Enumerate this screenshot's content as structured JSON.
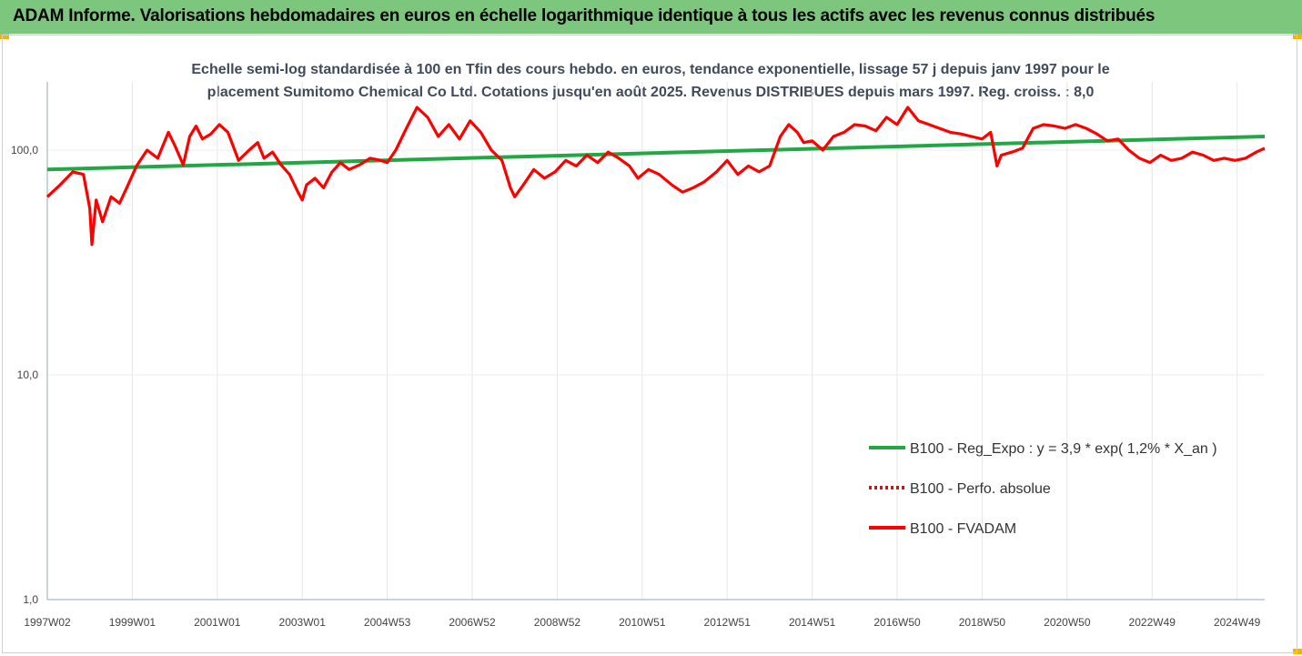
{
  "header": {
    "title": "ADAM Informe. Valorisations hebdomadaires en euros en échelle logarithmique identique à tous les actifs avec les revenus connus distribués"
  },
  "chart_data": {
    "type": "line",
    "title_line1": "Echelle semi-log standardisée à 100 en Tfin des cours hebdo. en euros, tendance exponentielle, lissage 57 j depuis janv 1997 pour le",
    "title_line2": "placement Sumitomo Chemical Co Ltd. Cotations jusqu'en août 2025. Revenus DISTRIBUES depuis mars 1997. Reg. croiss. : 8,0",
    "y_scale": "log",
    "ylim": [
      1,
      200
    ],
    "y_ticks": [
      1,
      10,
      100
    ],
    "y_tick_labels": [
      "1,0",
      "10,0",
      "100,0"
    ],
    "xlim": [
      1997.0,
      2025.65
    ],
    "x_ticks": [
      1997.0,
      1999.0,
      2001.0,
      2003.0,
      2005.0,
      2007.0,
      2009.0,
      2011.0,
      2013.0,
      2015.0,
      2017.0,
      2019.0,
      2021.0,
      2023.0,
      2025.0
    ],
    "x_tick_labels": [
      "1997W02",
      "1999W01",
      "2001W01",
      "2003W01",
      "2004W53",
      "2006W52",
      "2008W52",
      "2010W51",
      "2012W51",
      "2014W51",
      "2016W50",
      "2018W50",
      "2020W50",
      "2022W49",
      "2024W49"
    ],
    "grid": "vertical",
    "legend_position": "bottom-right",
    "colors": {
      "regression": "#22a745",
      "perfo": "#ff0000",
      "fvadam": "#ff0000"
    },
    "series": [
      {
        "name": "B100 - Reg_Expo : y = 3,9 * exp( 1,2% *  X_an )",
        "style": "solid-green",
        "x": [
          1997.0,
          2025.65
        ],
        "values": [
          82,
          115
        ]
      },
      {
        "name": "B100 - Perfo. absolue",
        "style": "dotted-red",
        "x": [],
        "values": []
      },
      {
        "name": "B100 - FVADAM",
        "style": "solid-red",
        "x": [
          1997.0,
          1997.3,
          1997.6,
          1997.85,
          1998.0,
          1998.05,
          1998.15,
          1998.3,
          1998.5,
          1998.7,
          1998.9,
          1999.1,
          1999.35,
          1999.6,
          1999.85,
          2000.0,
          2000.2,
          2000.35,
          2000.5,
          2000.65,
          2000.85,
          2001.05,
          2001.25,
          2001.5,
          2001.75,
          2001.95,
          2002.1,
          2002.3,
          2002.5,
          2002.7,
          2002.9,
          2003.0,
          2003.1,
          2003.3,
          2003.5,
          2003.7,
          2003.9,
          2004.1,
          2004.35,
          2004.6,
          2004.85,
          2005.0,
          2005.2,
          2005.45,
          2005.7,
          2005.95,
          2006.2,
          2006.45,
          2006.7,
          2006.95,
          2007.2,
          2007.45,
          2007.7,
          2007.9,
          2008.0,
          2008.2,
          2008.45,
          2008.7,
          2008.95,
          2009.2,
          2009.45,
          2009.7,
          2009.95,
          2010.2,
          2010.45,
          2010.7,
          2010.9,
          2011.15,
          2011.4,
          2011.7,
          2011.95,
          2012.2,
          2012.45,
          2012.75,
          2013.0,
          2013.25,
          2013.5,
          2013.75,
          2014.0,
          2014.25,
          2014.45,
          2014.65,
          2014.8,
          2015.0,
          2015.25,
          2015.5,
          2015.75,
          2016.0,
          2016.25,
          2016.5,
          2016.75,
          2017.0,
          2017.25,
          2017.5,
          2017.75,
          2018.0,
          2018.25,
          2018.5,
          2018.75,
          2019.0,
          2019.2,
          2019.35,
          2019.45,
          2019.7,
          2019.95,
          2020.2,
          2020.45,
          2020.7,
          2020.95,
          2021.2,
          2021.45,
          2021.7,
          2021.95,
          2022.2,
          2022.45,
          2022.7,
          2022.95,
          2023.2,
          2023.45,
          2023.7,
          2023.95,
          2024.2,
          2024.45,
          2024.7,
          2024.95,
          2025.2,
          2025.45,
          2025.65
        ],
        "values": [
          62,
          70,
          80,
          78,
          55,
          38,
          60,
          48,
          62,
          58,
          70,
          85,
          100,
          92,
          120,
          105,
          86,
          115,
          128,
          112,
          118,
          130,
          120,
          90,
          100,
          108,
          92,
          98,
          86,
          78,
          65,
          60,
          70,
          75,
          68,
          80,
          88,
          82,
          86,
          92,
          90,
          88,
          100,
          125,
          155,
          140,
          115,
          130,
          112,
          135,
          120,
          100,
          90,
          68,
          62,
          70,
          82,
          75,
          80,
          90,
          85,
          95,
          88,
          98,
          92,
          85,
          75,
          82,
          78,
          70,
          65,
          68,
          72,
          80,
          90,
          78,
          85,
          80,
          85,
          115,
          130,
          120,
          108,
          110,
          100,
          115,
          120,
          130,
          128,
          122,
          140,
          130,
          155,
          135,
          130,
          125,
          120,
          118,
          115,
          112,
          120,
          85,
          95,
          98,
          102,
          125,
          130,
          128,
          125,
          130,
          125,
          118,
          110,
          112,
          100,
          92,
          88,
          95,
          90,
          92,
          98,
          95,
          90,
          92,
          90,
          92,
          98,
          102
        ]
      }
    ]
  }
}
